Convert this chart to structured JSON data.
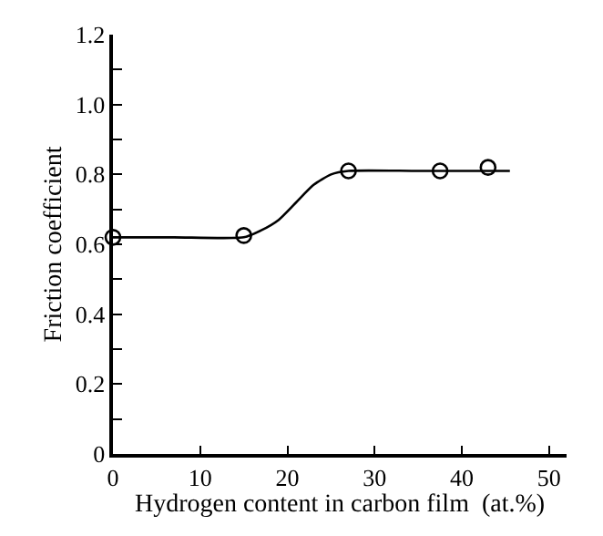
{
  "chart_data": {
    "type": "scatter",
    "xlabel": "Hydrogen content in carbon film  (at.%)",
    "ylabel": "Friction coefficient",
    "xlim": [
      0,
      52
    ],
    "ylim": [
      0,
      1.2
    ],
    "xticks": [
      0,
      10,
      20,
      30,
      40,
      50
    ],
    "yticks": [
      0,
      {
        "value": 0.1,
        "label": null
      },
      0.2,
      {
        "value": 0.3,
        "label": null
      },
      0.4,
      {
        "value": 0.5,
        "label": null
      },
      0.6,
      {
        "value": 0.7,
        "label": null
      },
      0.8,
      {
        "value": 0.9,
        "label": null
      },
      {
        "value": 1.0,
        "label": "1.0"
      },
      {
        "value": 1.1,
        "label": null
      },
      1.2
    ],
    "series": [
      {
        "type": "line",
        "color": "#000000",
        "marker": "none",
        "line_style": "solid",
        "x": [
          0,
          7,
          15,
          17,
          19,
          21,
          23,
          25,
          27,
          35,
          45.5
        ],
        "values": [
          0.62,
          0.62,
          0.62,
          0.64,
          0.67,
          0.72,
          0.77,
          0.8,
          0.81,
          0.81,
          0.81
        ]
      },
      {
        "color": "#000000",
        "marker": "circle",
        "x": [
          0,
          15,
          27,
          37.5,
          43
        ],
        "values": [
          0.62,
          0.625,
          0.81,
          0.81,
          0.82
        ]
      }
    ]
  }
}
